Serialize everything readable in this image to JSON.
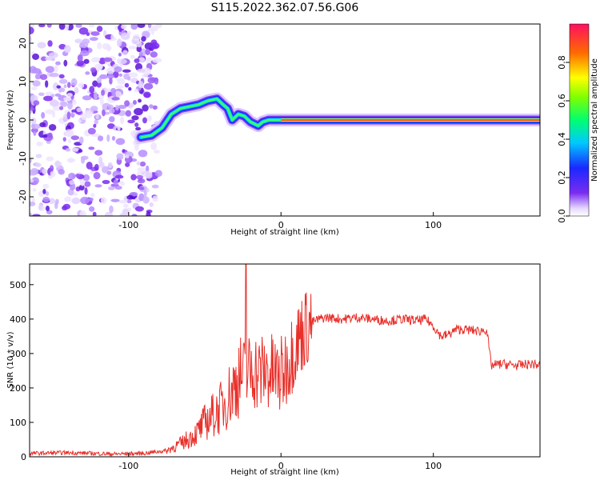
{
  "title": "S115.2022.362.07.56.G06",
  "chart_data": [
    {
      "type": "heatmap",
      "xlabel": "Height of straight line (km)",
      "ylabel": "Frequency (Hz)",
      "xlim": [
        -165,
        170
      ],
      "ylim": [
        -25,
        25
      ],
      "x_ticks": [
        -100,
        0,
        100
      ],
      "y_ticks": [
        -20,
        -10,
        0,
        10,
        20
      ],
      "colorbar": {
        "label": "Normalized spectral amplitude",
        "range": [
          0.0,
          1.0
        ],
        "ticks": [
          "0.0",
          "0.2",
          "0.4",
          "0.6",
          "0.8"
        ]
      },
      "noise_region": [
        -165,
        -80
      ],
      "signal_track": [
        {
          "x": -92,
          "y": -4.5
        },
        {
          "x": -85,
          "y": -4
        },
        {
          "x": -78,
          "y": -2
        },
        {
          "x": -72,
          "y": 1.5
        },
        {
          "x": -66,
          "y": 3
        },
        {
          "x": -60,
          "y": 3.5
        },
        {
          "x": -54,
          "y": 4
        },
        {
          "x": -48,
          "y": 5
        },
        {
          "x": -42,
          "y": 5.5
        },
        {
          "x": -38,
          "y": 4
        },
        {
          "x": -35,
          "y": 3
        },
        {
          "x": -32,
          "y": 0
        },
        {
          "x": -28,
          "y": 1.5
        },
        {
          "x": -24,
          "y": 1
        },
        {
          "x": -20,
          "y": -0.5
        },
        {
          "x": -15,
          "y": -1.5
        },
        {
          "x": -12,
          "y": -0.5
        },
        {
          "x": -8,
          "y": 0
        },
        {
          "x": 0,
          "y": 0
        },
        {
          "x": 50,
          "y": 0
        },
        {
          "x": 100,
          "y": 0
        },
        {
          "x": 170,
          "y": 0
        }
      ]
    },
    {
      "type": "line",
      "xlabel": "Height of straight line (km)",
      "ylabel": "SNR (10 * v/v)",
      "xlim": [
        -165,
        170
      ],
      "ylim": [
        0,
        560
      ],
      "x_ticks": [
        -100,
        0,
        100
      ],
      "y_ticks": [
        0,
        100,
        200,
        300,
        400,
        500
      ],
      "color": "#e8302a",
      "series": [
        {
          "x": [
            -165,
            -140,
            -110,
            -90,
            -75,
            -65,
            -55,
            -50,
            -45,
            -40,
            -35,
            -30,
            -27,
            -25,
            -22,
            -18,
            -15,
            -10,
            -5,
            0,
            5,
            10,
            15,
            20,
            25,
            30,
            40,
            50,
            60,
            70,
            80,
            90,
            95,
            100,
            105,
            110,
            115,
            120,
            130,
            135,
            138,
            145,
            155,
            165,
            170
          ],
          "y": [
            10,
            12,
            8,
            10,
            18,
            40,
            70,
            100,
            120,
            140,
            170,
            210,
            240,
            230,
            240,
            260,
            240,
            250,
            240,
            230,
            280,
            330,
            370,
            390,
            400,
            405,
            400,
            405,
            400,
            395,
            400,
            395,
            400,
            380,
            350,
            355,
            370,
            370,
            365,
            370,
            265,
            270,
            265,
            270,
            265
          ]
        }
      ],
      "spike": {
        "x": -23,
        "y": 560
      }
    }
  ]
}
